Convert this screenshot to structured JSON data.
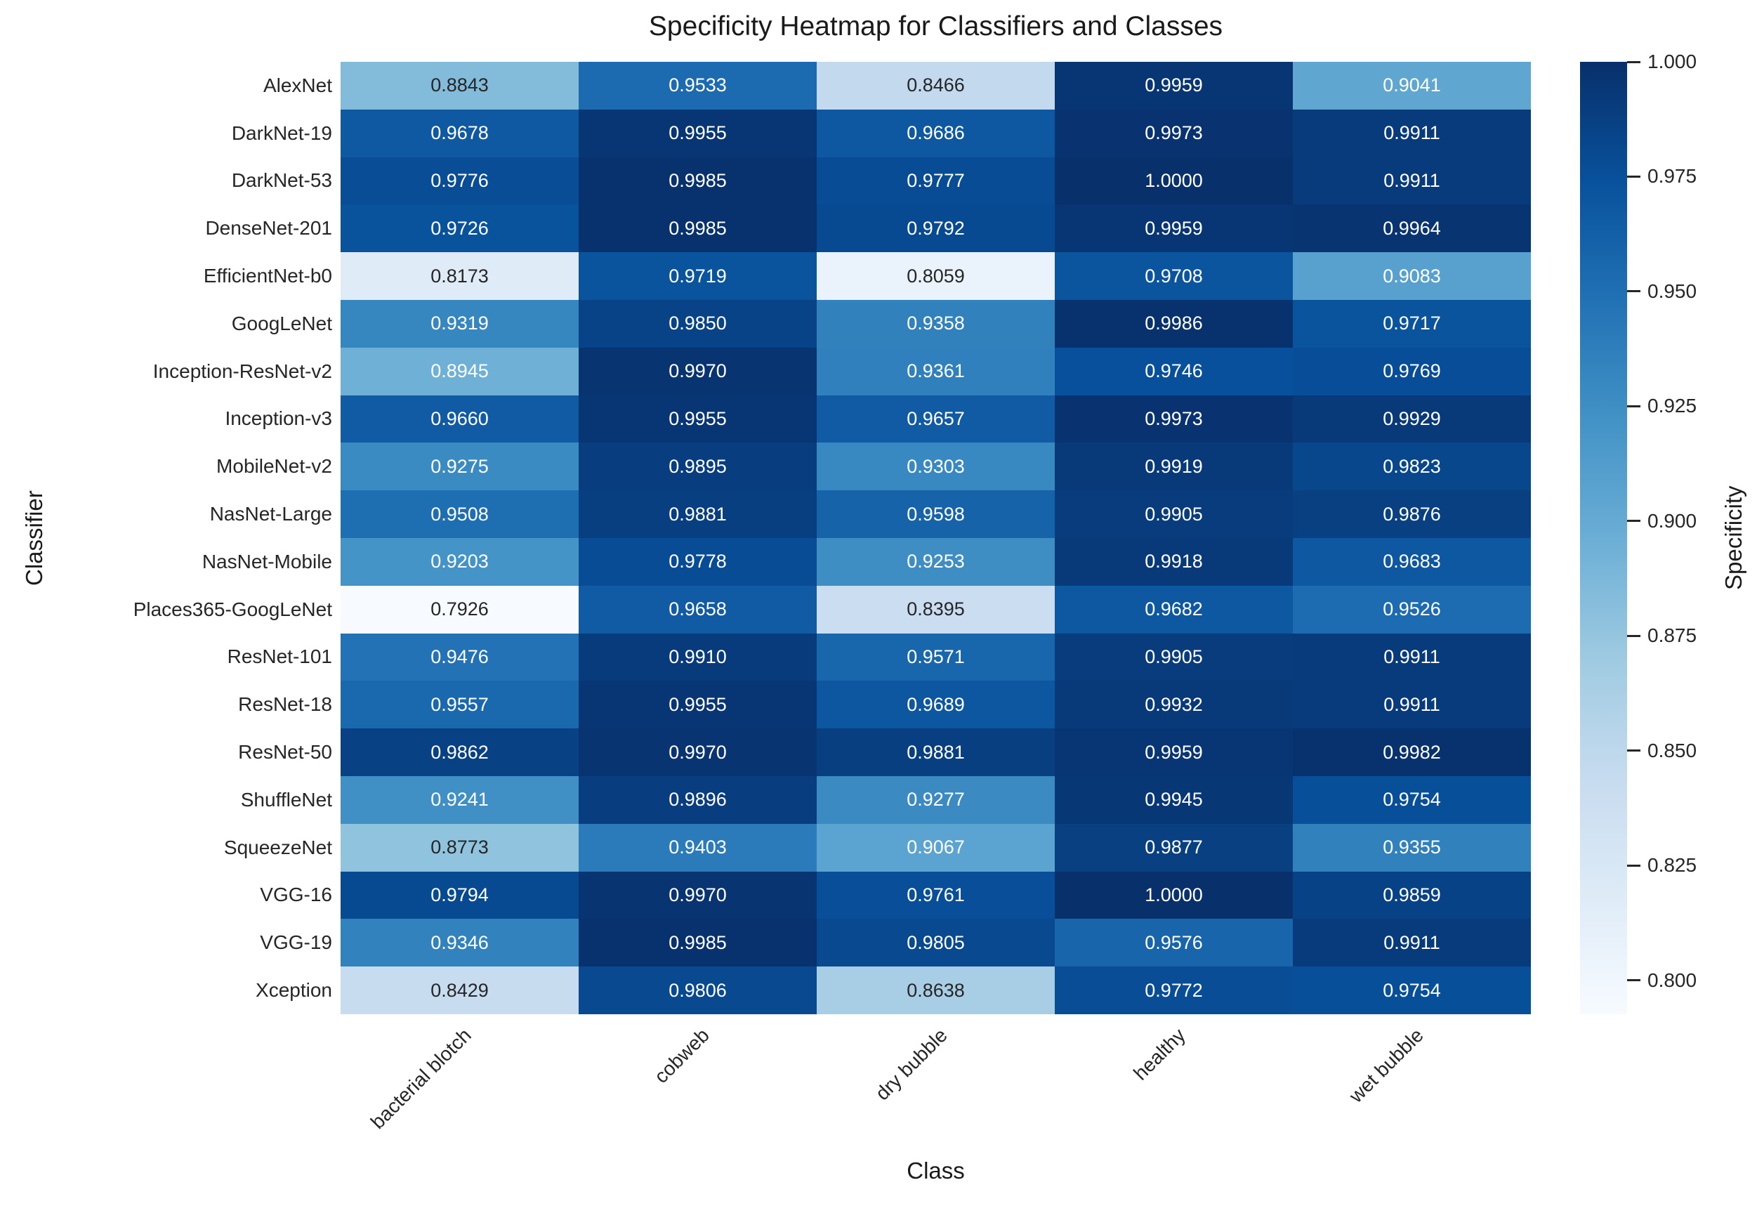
{
  "chart_data": {
    "type": "heatmap",
    "title": "Specificity Heatmap for Classifiers and Classes",
    "xlabel": "Class",
    "ylabel": "Classifier",
    "x_categories": [
      "bacterial blotch",
      "cobweb",
      "dry bubble",
      "healthy",
      "wet bubble"
    ],
    "y_categories": [
      "AlexNet",
      "DarkNet-19",
      "DarkNet-53",
      "DenseNet-201",
      "EfficientNet-b0",
      "GoogLeNet",
      "Inception-ResNet-v2",
      "Inception-v3",
      "MobileNet-v2",
      "NasNet-Large",
      "NasNet-Mobile",
      "Places365-GoogLeNet",
      "ResNet-101",
      "ResNet-18",
      "ResNet-50",
      "ShuffleNet",
      "SqueezeNet",
      "VGG-16",
      "VGG-19",
      "Xception"
    ],
    "matrix": [
      [
        0.8843,
        0.9533,
        0.8466,
        0.9959,
        0.9041
      ],
      [
        0.9678,
        0.9955,
        0.9686,
        0.9973,
        0.9911
      ],
      [
        0.9776,
        0.9985,
        0.9777,
        1.0,
        0.9911
      ],
      [
        0.9726,
        0.9985,
        0.9792,
        0.9959,
        0.9964
      ],
      [
        0.8173,
        0.9719,
        0.8059,
        0.9708,
        0.9083
      ],
      [
        0.9319,
        0.985,
        0.9358,
        0.9986,
        0.9717
      ],
      [
        0.8945,
        0.997,
        0.9361,
        0.9746,
        0.9769
      ],
      [
        0.966,
        0.9955,
        0.9657,
        0.9973,
        0.9929
      ],
      [
        0.9275,
        0.9895,
        0.9303,
        0.9919,
        0.9823
      ],
      [
        0.9508,
        0.9881,
        0.9598,
        0.9905,
        0.9876
      ],
      [
        0.9203,
        0.9778,
        0.9253,
        0.9918,
        0.9683
      ],
      [
        0.7926,
        0.9658,
        0.8395,
        0.9682,
        0.9526
      ],
      [
        0.9476,
        0.991,
        0.9571,
        0.9905,
        0.9911
      ],
      [
        0.9557,
        0.9955,
        0.9689,
        0.9932,
        0.9911
      ],
      [
        0.9862,
        0.997,
        0.9881,
        0.9959,
        0.9982
      ],
      [
        0.9241,
        0.9896,
        0.9277,
        0.9945,
        0.9754
      ],
      [
        0.8773,
        0.9403,
        0.9067,
        0.9877,
        0.9355
      ],
      [
        0.9794,
        0.997,
        0.9761,
        1.0,
        0.9859
      ],
      [
        0.9346,
        0.9985,
        0.9805,
        0.9576,
        0.9911
      ],
      [
        0.8429,
        0.9806,
        0.8638,
        0.9772,
        0.9754
      ]
    ],
    "value_decimals": 4,
    "colorbar": {
      "label": "Specificity",
      "tick_labels": [
        "1.000",
        "0.975",
        "0.950",
        "0.925",
        "0.900",
        "0.875",
        "0.850",
        "0.825",
        "0.800"
      ],
      "tick_values": [
        1.0,
        0.975,
        0.95,
        0.925,
        0.9,
        0.875,
        0.85,
        0.825,
        0.8
      ],
      "vmin": 0.7926,
      "vmax": 1.0
    },
    "palette": {
      "name": "Blues",
      "anchors": [
        "#f7fbff",
        "#deebf7",
        "#c6dbef",
        "#9ecae1",
        "#6baed6",
        "#4292c6",
        "#2171b5",
        "#08519c",
        "#08306b"
      ]
    },
    "annotation_colors": {
      "on_light": "#262626",
      "on_dark": "#ffffff"
    },
    "legend_position": "right",
    "grid": false
  }
}
